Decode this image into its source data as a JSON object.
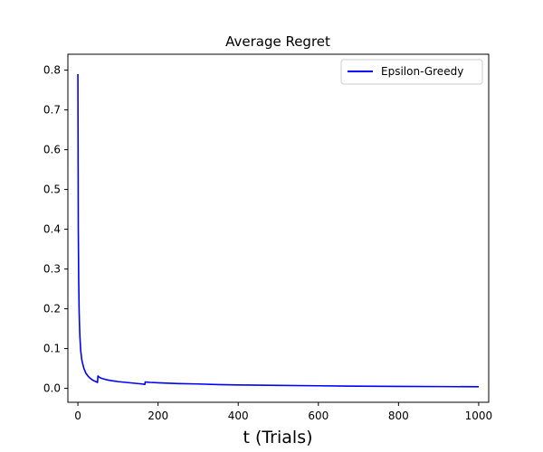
{
  "chart_data": {
    "type": "line",
    "title": "Average Regret",
    "xlabel": "t (Trials)",
    "ylabel": "",
    "xlim": [
      -25,
      1025
    ],
    "ylim": [
      -0.035,
      0.84
    ],
    "xticks": [
      0,
      200,
      400,
      600,
      800,
      1000
    ],
    "yticks": [
      0.0,
      0.1,
      0.2,
      0.3,
      0.4,
      0.5,
      0.6,
      0.7,
      0.8
    ],
    "grid": false,
    "legend": {
      "position": "top-right",
      "entries": [
        "Epsilon-Greedy"
      ]
    },
    "series": [
      {
        "name": "Epsilon-Greedy",
        "color": "#0000ff",
        "points": [
          [
            0,
            0.79
          ],
          [
            1,
            0.4
          ],
          [
            2,
            0.27
          ],
          [
            3,
            0.2
          ],
          [
            4,
            0.16
          ],
          [
            5,
            0.13
          ],
          [
            7,
            0.095
          ],
          [
            10,
            0.07
          ],
          [
            15,
            0.05
          ],
          [
            20,
            0.038
          ],
          [
            25,
            0.031
          ],
          [
            30,
            0.026
          ],
          [
            35,
            0.022
          ],
          [
            40,
            0.019
          ],
          [
            45,
            0.017
          ],
          [
            49,
            0.015
          ],
          [
            50,
            0.031
          ],
          [
            55,
            0.027
          ],
          [
            60,
            0.025
          ],
          [
            70,
            0.022
          ],
          [
            80,
            0.02
          ],
          [
            100,
            0.017
          ],
          [
            120,
            0.015
          ],
          [
            140,
            0.013
          ],
          [
            160,
            0.011
          ],
          [
            167,
            0.01
          ],
          [
            168,
            0.016
          ],
          [
            180,
            0.015
          ],
          [
            200,
            0.014
          ],
          [
            250,
            0.012
          ],
          [
            300,
            0.011
          ],
          [
            350,
            0.0095
          ],
          [
            400,
            0.0085
          ],
          [
            500,
            0.0075
          ],
          [
            600,
            0.0065
          ],
          [
            700,
            0.0055
          ],
          [
            800,
            0.005
          ],
          [
            900,
            0.0045
          ],
          [
            1000,
            0.004
          ]
        ]
      }
    ]
  }
}
